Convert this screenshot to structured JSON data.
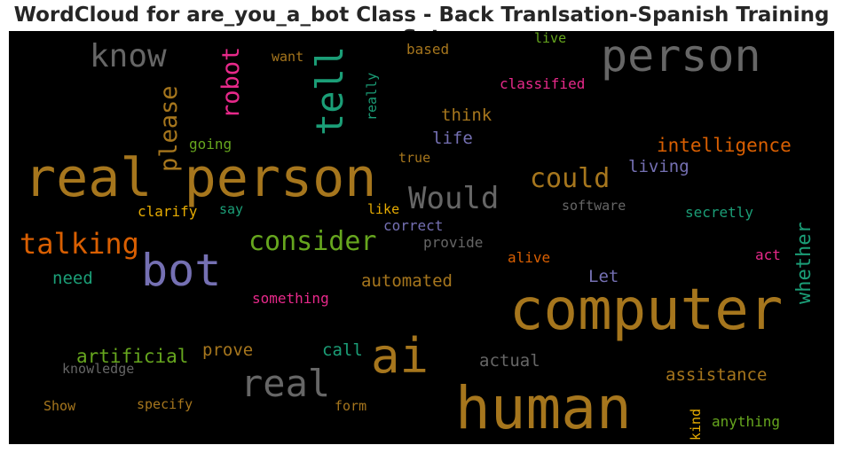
{
  "title": "WordCloud for are_you_a_bot Class - Back Tranlsation-Spanish Training Set",
  "chart_data": {
    "type": "wordcloud",
    "title": "WordCloud for are_you_a_bot Class - Back Tranlsation-Spanish Training Set",
    "background": "#000000",
    "words": [
      {
        "text": "real person",
        "color": "#a6761d"
      },
      {
        "text": "computer",
        "color": "#a6761d"
      },
      {
        "text": "human",
        "color": "#a6761d"
      },
      {
        "text": "person",
        "color": "#666666"
      },
      {
        "text": "bot",
        "color": "#7570b3"
      },
      {
        "text": "ai",
        "color": "#a6761d"
      },
      {
        "text": "real",
        "color": "#666666"
      },
      {
        "text": "tell",
        "color": "#1b9e77"
      },
      {
        "text": "know",
        "color": "#666666"
      },
      {
        "text": "Would",
        "color": "#666666"
      },
      {
        "text": "consider",
        "color": "#66a61e"
      },
      {
        "text": "talking",
        "color": "#d95f02"
      },
      {
        "text": "please",
        "color": "#a6761d"
      },
      {
        "text": "robot",
        "color": "#e7298a"
      },
      {
        "text": "could",
        "color": "#a6761d"
      },
      {
        "text": "intelligence",
        "color": "#d95f02"
      },
      {
        "text": "whether",
        "color": "#1b9e77"
      },
      {
        "text": "artificial",
        "color": "#66a61e"
      },
      {
        "text": "assistance",
        "color": "#a6761d"
      },
      {
        "text": "automated",
        "color": "#a6761d"
      },
      {
        "text": "living",
        "color": "#7570b3"
      },
      {
        "text": "think",
        "color": "#a6761d"
      },
      {
        "text": "life",
        "color": "#7570b3"
      },
      {
        "text": "actual",
        "color": "#666666"
      },
      {
        "text": "prove",
        "color": "#a6761d"
      },
      {
        "text": "call",
        "color": "#1b9e77"
      },
      {
        "text": "need",
        "color": "#1b9e77"
      },
      {
        "text": "Let",
        "color": "#7570b3"
      },
      {
        "text": "anything",
        "color": "#66a61e"
      },
      {
        "text": "classified",
        "color": "#e7298a"
      },
      {
        "text": "based",
        "color": "#a6761d"
      },
      {
        "text": "want",
        "color": "#a6761d"
      },
      {
        "text": "live",
        "color": "#66a61e"
      },
      {
        "text": "really",
        "color": "#1b9e77"
      },
      {
        "text": "going",
        "color": "#66a61e"
      },
      {
        "text": "true",
        "color": "#a6761d"
      },
      {
        "text": "clarify",
        "color": "#e6ab02"
      },
      {
        "text": "say",
        "color": "#1b9e77"
      },
      {
        "text": "like",
        "color": "#e6ab02"
      },
      {
        "text": "correct",
        "color": "#7570b3"
      },
      {
        "text": "software",
        "color": "#666666"
      },
      {
        "text": "secretly",
        "color": "#1b9e77"
      },
      {
        "text": "provide",
        "color": "#666666"
      },
      {
        "text": "alive",
        "color": "#d95f02"
      },
      {
        "text": "act",
        "color": "#e7298a"
      },
      {
        "text": "something",
        "color": "#e7298a"
      },
      {
        "text": "knowledge",
        "color": "#666666"
      },
      {
        "text": "Show",
        "color": "#a6761d"
      },
      {
        "text": "specify",
        "color": "#a6761d"
      },
      {
        "text": "form",
        "color": "#a6761d"
      },
      {
        "text": "kind",
        "color": "#e6ab02"
      }
    ]
  }
}
